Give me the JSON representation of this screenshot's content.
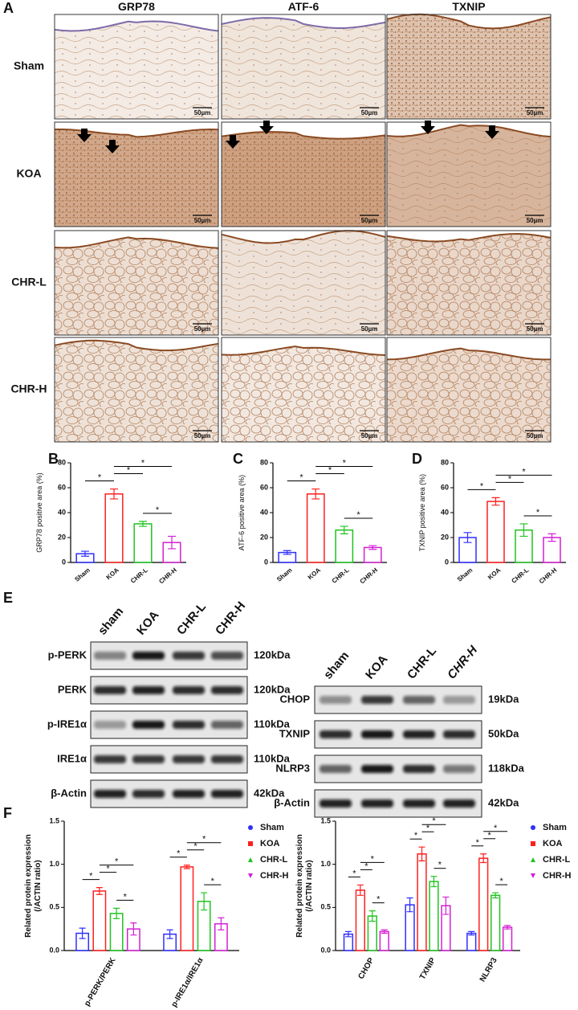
{
  "histology": {
    "panel": "A",
    "columns": [
      "GRP78",
      "ATF-6",
      "TXNIP"
    ],
    "rows": [
      "Sham",
      "KOA",
      "CHR-L",
      "CHR-H"
    ],
    "scale_bar": "50µm"
  },
  "western_blot": {
    "panel": "E",
    "left": {
      "lanes": [
        "sham",
        "KOA",
        "CHR-L",
        "CHR-H"
      ],
      "proteins": [
        {
          "name": "p-PERK",
          "size": "120kDa"
        },
        {
          "name": "PERK",
          "size": "120kDa"
        },
        {
          "name": "p-IRE1α",
          "size": "110kDa"
        },
        {
          "name": "IRE1α",
          "size": "110kDa"
        },
        {
          "name": "β-Actin",
          "size": "42kDa"
        }
      ]
    },
    "right": {
      "lanes": [
        "sham",
        "KOA",
        "CHR-L",
        "CHR-H"
      ],
      "proteins": [
        {
          "name": "CHOP",
          "size": "19kDa"
        },
        {
          "name": "TXNIP",
          "size": "50kDa"
        },
        {
          "name": "NLRP3",
          "size": "118kDa"
        },
        {
          "name": "β-Actin",
          "size": "42kDa"
        }
      ]
    }
  },
  "chart_data": [
    {
      "type": "bar",
      "panel": "B",
      "ylabel": "GRP78 positive area (%)",
      "categories": [
        "Sham",
        "KOA",
        "CHR-L",
        "CHR-H"
      ],
      "colors": [
        "#2f2fff",
        "#ff1f1f",
        "#1fc41f",
        "#d41fd4"
      ],
      "values": [
        7,
        55,
        31,
        16
      ],
      "errors": [
        2,
        4,
        2,
        5
      ],
      "ylim": [
        0,
        80
      ],
      "yticks": [
        0,
        20,
        40,
        60,
        80
      ],
      "brackets": [
        {
          "from": "Sham",
          "to": "KOA",
          "label": "*"
        },
        {
          "from": "KOA",
          "to": "CHR-L",
          "label": "*"
        },
        {
          "from": "KOA",
          "to": "CHR-H",
          "label": "*"
        },
        {
          "from": "CHR-L",
          "to": "CHR-H",
          "label": "*"
        }
      ]
    },
    {
      "type": "bar",
      "panel": "C",
      "ylabel": "ATF-6 positive area (%)",
      "categories": [
        "Sham",
        "KOA",
        "CHR-L",
        "CHR-H"
      ],
      "colors": [
        "#2f2fff",
        "#ff1f1f",
        "#1fc41f",
        "#d41fd4"
      ],
      "values": [
        8,
        55,
        26,
        12
      ],
      "errors": [
        1.5,
        4,
        3,
        1.5
      ],
      "ylim": [
        0,
        80
      ],
      "yticks": [
        0,
        20,
        40,
        60,
        80
      ],
      "brackets": [
        {
          "from": "Sham",
          "to": "KOA",
          "label": "*"
        },
        {
          "from": "KOA",
          "to": "CHR-L",
          "label": "*"
        },
        {
          "from": "KOA",
          "to": "CHR-H",
          "label": "*"
        },
        {
          "from": "CHR-L",
          "to": "CHR-H",
          "label": "*"
        }
      ]
    },
    {
      "type": "bar",
      "panel": "D",
      "ylabel": "TXNIP positive area (%)",
      "categories": [
        "Sham",
        "KOA",
        "CHR-L",
        "CHR-H"
      ],
      "colors": [
        "#2f2fff",
        "#ff1f1f",
        "#1fc41f",
        "#d41fd4"
      ],
      "values": [
        20,
        49,
        26,
        20
      ],
      "errors": [
        4,
        3,
        5,
        3
      ],
      "ylim": [
        0,
        80
      ],
      "yticks": [
        0,
        20,
        40,
        60,
        80
      ],
      "brackets": [
        {
          "from": "Sham",
          "to": "KOA",
          "label": "*"
        },
        {
          "from": "KOA",
          "to": "CHR-L",
          "label": "*"
        },
        {
          "from": "KOA",
          "to": "CHR-H",
          "label": "*"
        },
        {
          "from": "CHR-L",
          "to": "CHR-H",
          "label": "*"
        }
      ]
    },
    {
      "type": "grouped_bar",
      "panel": "F",
      "ylabel": [
        "Related protein expression",
        "(/ACTIN ratio)"
      ],
      "categories": [
        "p-PERK/PERK",
        "p-IRE1α/IRE1α"
      ],
      "series": [
        {
          "name": "Sham",
          "color": "#2f2fff",
          "marker": "circle",
          "values": [
            0.2,
            0.19
          ],
          "errors": [
            0.06,
            0.05
          ]
        },
        {
          "name": "KOA",
          "color": "#ff1f1f",
          "marker": "square",
          "values": [
            0.69,
            0.97
          ],
          "errors": [
            0.04,
            0.02
          ]
        },
        {
          "name": "CHR-L",
          "color": "#1fc41f",
          "marker": "triangle",
          "values": [
            0.43,
            0.57
          ],
          "errors": [
            0.06,
            0.1
          ]
        },
        {
          "name": "CHR-H",
          "color": "#d41fd4",
          "marker": "triangle-down",
          "values": [
            0.25,
            0.31
          ],
          "errors": [
            0.07,
            0.07
          ]
        }
      ],
      "ylim": [
        0,
        1.5
      ],
      "yticks": [
        {
          "value": 0,
          "label": "0.0"
        },
        {
          "value": 0.5,
          "label": "0.5"
        },
        {
          "value": 1,
          "label": "1.0"
        },
        {
          "value": 1.5,
          "label": "1.5"
        }
      ],
      "brackets": [
        {
          "category": "p-PERK/PERK",
          "from": "Sham",
          "to": "KOA",
          "label": "*"
        },
        {
          "category": "p-PERK/PERK",
          "from": "KOA",
          "to": "CHR-L",
          "label": "*"
        },
        {
          "category": "p-PERK/PERK",
          "from": "KOA",
          "to": "CHR-H",
          "label": "*"
        },
        {
          "category": "p-PERK/PERK",
          "from": "CHR-L",
          "to": "CHR-H",
          "label": "*"
        },
        {
          "category": "p-IRE1α/IRE1α",
          "from": "Sham",
          "to": "KOA",
          "label": "*"
        },
        {
          "category": "p-IRE1α/IRE1α",
          "from": "KOA",
          "to": "CHR-L",
          "label": "*"
        },
        {
          "category": "p-IRE1α/IRE1α",
          "from": "KOA",
          "to": "CHR-H",
          "label": "*"
        },
        {
          "category": "p-IRE1α/IRE1α",
          "from": "CHR-L",
          "to": "CHR-H",
          "label": "*"
        }
      ]
    },
    {
      "type": "grouped_bar",
      "ylabel": [
        "Related protein expression",
        "(/ACTIN ratio)"
      ],
      "categories": [
        "CHOP",
        "TXNIP",
        "NLRP3"
      ],
      "series": [
        {
          "name": "Sham",
          "color": "#2f2fff",
          "marker": "circle",
          "values": [
            0.19,
            0.53,
            0.2
          ],
          "errors": [
            0.03,
            0.08,
            0.02
          ]
        },
        {
          "name": "KOA",
          "color": "#ff1f1f",
          "marker": "square",
          "values": [
            0.7,
            1.12,
            1.07
          ],
          "errors": [
            0.06,
            0.08,
            0.05
          ]
        },
        {
          "name": "CHR-L",
          "color": "#1fc41f",
          "marker": "triangle",
          "values": [
            0.4,
            0.8,
            0.64
          ],
          "errors": [
            0.06,
            0.06,
            0.03
          ]
        },
        {
          "name": "CHR-H",
          "color": "#d41fd4",
          "marker": "triangle-down",
          "values": [
            0.22,
            0.52,
            0.27
          ],
          "errors": [
            0.02,
            0.1,
            0.02
          ]
        }
      ],
      "ylim": [
        0,
        1.5
      ],
      "yticks": [
        {
          "value": 0,
          "label": "0.0"
        },
        {
          "value": 0.5,
          "label": "0.5"
        },
        {
          "value": 1,
          "label": "1.0"
        },
        {
          "value": 1.5,
          "label": "1.5"
        }
      ],
      "brackets": [
        {
          "category": "CHOP",
          "from": "Sham",
          "to": "KOA",
          "label": "*"
        },
        {
          "category": "CHOP",
          "from": "KOA",
          "to": "CHR-L",
          "label": "*"
        },
        {
          "category": "CHOP",
          "from": "KOA",
          "to": "CHR-H",
          "label": "*"
        },
        {
          "category": "CHOP",
          "from": "CHR-L",
          "to": "CHR-H",
          "label": "*"
        },
        {
          "category": "TXNIP",
          "from": "Sham",
          "to": "KOA",
          "label": "*"
        },
        {
          "category": "TXNIP",
          "from": "KOA",
          "to": "CHR-L",
          "label": "*"
        },
        {
          "category": "TXNIP",
          "from": "KOA",
          "to": "CHR-H",
          "label": "*"
        },
        {
          "category": "TXNIP",
          "from": "CHR-L",
          "to": "CHR-H",
          "label": "*"
        },
        {
          "category": "NLRP3",
          "from": "Sham",
          "to": "KOA",
          "label": "*"
        },
        {
          "category": "NLRP3",
          "from": "KOA",
          "to": "CHR-L",
          "label": "*"
        },
        {
          "category": "NLRP3",
          "from": "KOA",
          "to": "CHR-H",
          "label": "*"
        },
        {
          "category": "NLRP3",
          "from": "CHR-L",
          "to": "CHR-H",
          "label": "*"
        }
      ]
    }
  ]
}
